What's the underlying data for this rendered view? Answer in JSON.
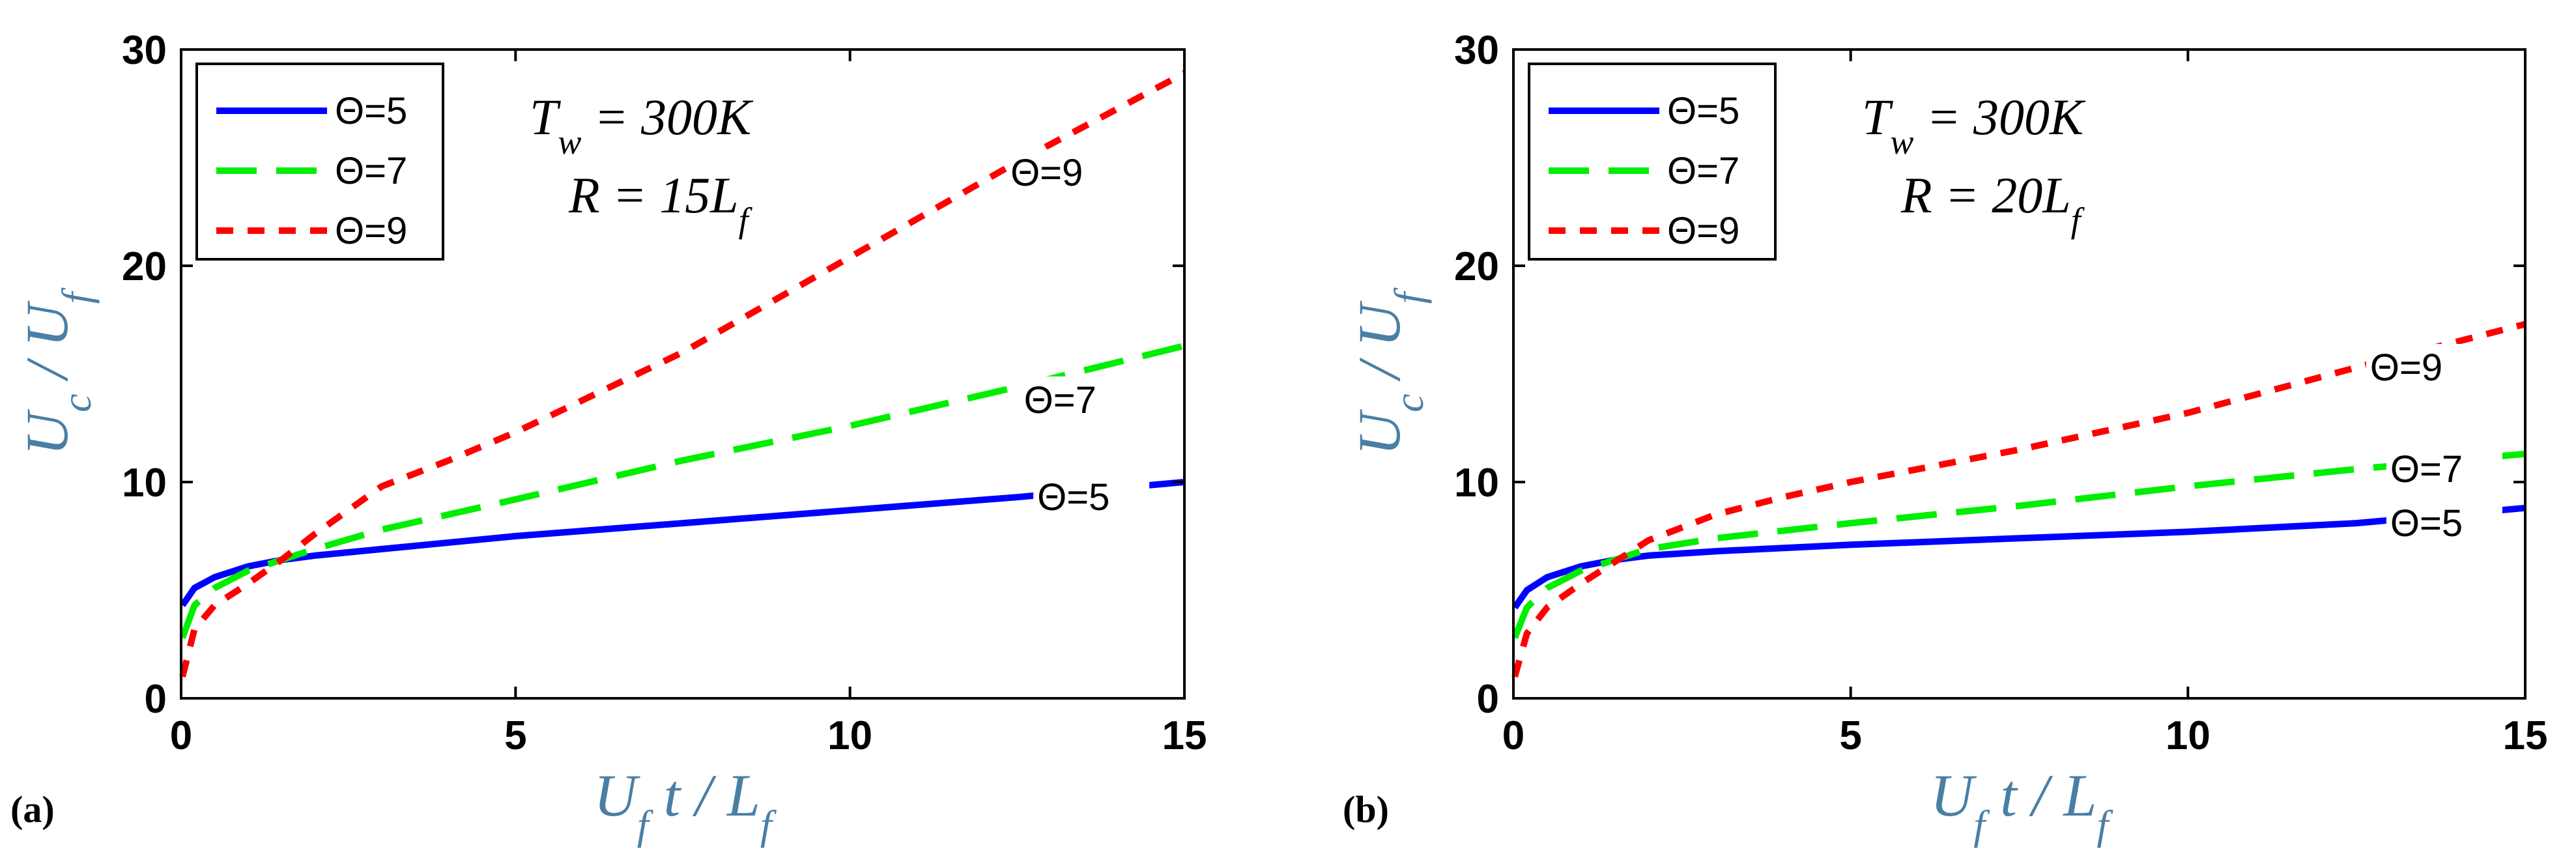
{
  "chart_data": [
    {
      "type": "line",
      "panel_label": "(a)",
      "xlabel": "U_f t / L_f",
      "ylabel": "U_c / U_f",
      "xlim": [
        0,
        15
      ],
      "ylim": [
        0,
        30
      ],
      "xticks": [
        "0",
        "5",
        "10",
        "15"
      ],
      "yticks": [
        "0",
        "10",
        "20",
        "30"
      ],
      "annotation": {
        "line1": "T_w = 300K",
        "line2": "R = 15L_f"
      },
      "legend": {
        "position": "top-left",
        "entries": [
          "Θ=5",
          "Θ=7",
          "Θ=9"
        ]
      },
      "series": [
        {
          "name": "Θ=5",
          "color": "#0000ff",
          "style": "solid",
          "x": [
            0.02,
            0.2,
            0.5,
            1.0,
            1.5,
            2,
            3,
            5,
            7.5,
            10,
            12.5,
            15
          ],
          "y": [
            4.3,
            5.1,
            5.6,
            6.1,
            6.4,
            6.6,
            6.9,
            7.5,
            8.1,
            8.7,
            9.3,
            10.0
          ],
          "inline_label": "Θ=5",
          "inline_at": [
            12.8,
            9.3
          ]
        },
        {
          "name": "Θ=7",
          "color": "#00ee00",
          "style": "dashed",
          "x": [
            0.02,
            0.2,
            0.5,
            1.0,
            1.5,
            2,
            3,
            5,
            7.5,
            10,
            12.5,
            15
          ],
          "y": [
            2.8,
            4.3,
            5.1,
            5.9,
            6.4,
            6.9,
            7.8,
            9.2,
            11.0,
            12.6,
            14.4,
            16.3
          ],
          "inline_label": "Θ=7",
          "inline_at": [
            12.6,
            13.8
          ]
        },
        {
          "name": "Θ=9",
          "color": "#ff0000",
          "style": "dotted",
          "x": [
            0.02,
            0.2,
            0.5,
            1.0,
            1.5,
            2,
            3,
            4,
            5,
            7.5,
            10,
            12.5,
            15
          ],
          "y": [
            1.0,
            3.2,
            4.3,
            5.3,
            6.4,
            7.6,
            9.8,
            11.0,
            12.3,
            16.0,
            20.4,
            24.8,
            28.9
          ],
          "inline_label": "Θ=9",
          "inline_at": [
            12.4,
            24.3
          ]
        }
      ]
    },
    {
      "type": "line",
      "panel_label": "(b)",
      "xlabel": "U_f t / L_f",
      "ylabel": "U_c / U_f",
      "xlim": [
        0,
        15
      ],
      "ylim": [
        0,
        30
      ],
      "xticks": [
        "0",
        "5",
        "10",
        "15"
      ],
      "yticks": [
        "0",
        "10",
        "20",
        "30"
      ],
      "annotation": {
        "line1": "T_w = 300K",
        "line2": "R = 20L_f"
      },
      "legend": {
        "position": "top-left",
        "entries": [
          "Θ=5",
          "Θ=7",
          "Θ=9"
        ]
      },
      "series": [
        {
          "name": "Θ=5",
          "color": "#0000ff",
          "style": "solid",
          "x": [
            0.02,
            0.2,
            0.5,
            1.0,
            1.5,
            2,
            3,
            5,
            7.5,
            10,
            12.5,
            15
          ],
          "y": [
            4.2,
            5.0,
            5.6,
            6.1,
            6.4,
            6.6,
            6.8,
            7.1,
            7.4,
            7.7,
            8.1,
            8.8
          ],
          "inline_label": "Θ=5",
          "inline_at": [
            13.0,
            8.1
          ]
        },
        {
          "name": "Θ=7",
          "color": "#00ee00",
          "style": "dashed",
          "x": [
            0.02,
            0.2,
            0.5,
            1.0,
            1.5,
            2,
            3,
            5,
            7.5,
            10,
            12.5,
            15
          ],
          "y": [
            2.8,
            4.2,
            5.1,
            5.9,
            6.4,
            6.9,
            7.4,
            8.1,
            8.9,
            9.8,
            10.6,
            11.3
          ],
          "inline_label": "Θ=7",
          "inline_at": [
            13.0,
            10.6
          ]
        },
        {
          "name": "Θ=9",
          "color": "#ff0000",
          "style": "dotted",
          "x": [
            0.02,
            0.2,
            0.5,
            1.0,
            1.5,
            2,
            3,
            4,
            5,
            7.5,
            10,
            12.5,
            15
          ],
          "y": [
            1.0,
            3.0,
            4.2,
            5.3,
            6.3,
            7.3,
            8.5,
            9.3,
            10.0,
            11.5,
            13.2,
            15.3,
            17.3
          ],
          "inline_label": "Θ=9",
          "inline_at": [
            12.7,
            15.3
          ]
        }
      ]
    }
  ]
}
